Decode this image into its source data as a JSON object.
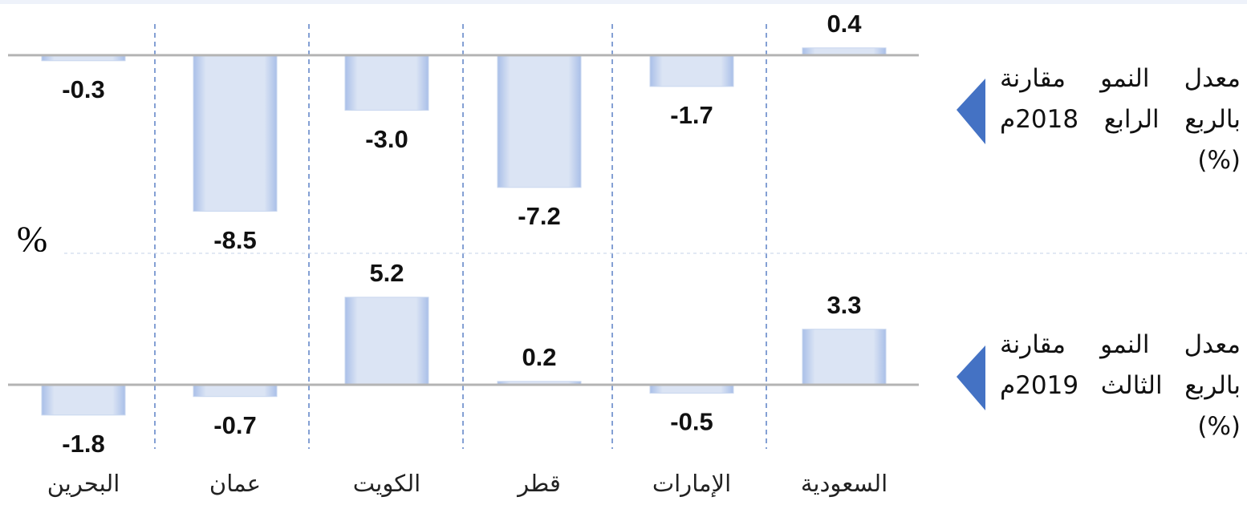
{
  "chart_data": {
    "type": "bar",
    "y_label": "%",
    "categories": [
      "السعودية",
      "الإمارات",
      "قطر",
      "الكويت",
      "عمان",
      "البحرين"
    ],
    "series": [
      {
        "name": "معدل النمو مقارنة بالربع الرابع 2018م (%)",
        "color": "#c9d7ef",
        "values": [
          0.4,
          -1.7,
          -7.2,
          -3.0,
          -8.5,
          -0.3
        ],
        "value_labels": [
          "0.4",
          "-1.7",
          "-7.2",
          "-3.0",
          "-8.5",
          "-0.3"
        ],
        "ylim": [
          -9.5,
          1
        ]
      },
      {
        "name": "معدل النمو مقارنة بالربع الثالث 2019م (%)",
        "color": "#c9d7ef",
        "values": [
          3.3,
          -0.5,
          0.2,
          5.2,
          -0.7,
          -1.8
        ],
        "value_labels": [
          "3.3",
          "-0.5",
          "0.2",
          "5.2",
          "-0.7",
          "-1.8"
        ],
        "ylim": [
          -2.5,
          6.5
        ]
      }
    ]
  }
}
